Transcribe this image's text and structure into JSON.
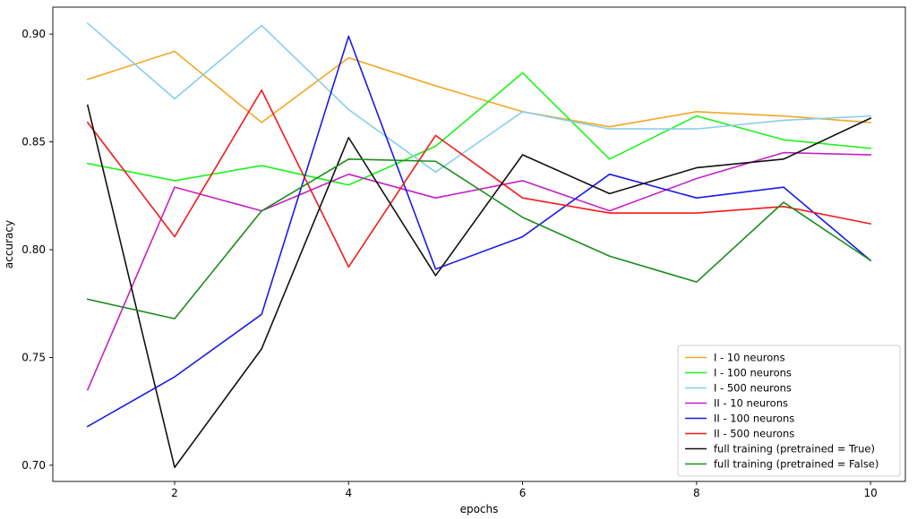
{
  "chart_data": {
    "type": "line",
    "title": "",
    "xlabel": "epochs",
    "ylabel": "accuracy",
    "x": [
      1,
      2,
      3,
      4,
      5,
      6,
      7,
      8,
      9,
      10
    ],
    "xlim": [
      0.6,
      10.4
    ],
    "ylim": [
      0.6925,
      0.9125
    ],
    "xticks": [
      2,
      4,
      6,
      8,
      10
    ],
    "yticks": [
      0.7,
      0.75,
      0.8,
      0.85,
      0.9
    ],
    "ytick_labels": [
      "0.70",
      "0.75",
      "0.80",
      "0.85",
      "0.90"
    ],
    "grid": false,
    "legend_position": "lower-right",
    "series": [
      {
        "name": "I - 10 neurons",
        "color": "#f5a623",
        "values": [
          0.879,
          0.892,
          0.859,
          0.889,
          0.876,
          0.864,
          0.857,
          0.864,
          0.862,
          0.859
        ]
      },
      {
        "name": "I - 100 neurons",
        "color": "#19f519",
        "values": [
          0.84,
          0.832,
          0.839,
          0.83,
          0.848,
          0.882,
          0.842,
          0.862,
          0.851,
          0.847
        ]
      },
      {
        "name": "I - 500 neurons",
        "color": "#87ceeb",
        "values": [
          0.905,
          0.87,
          0.904,
          0.865,
          0.836,
          0.864,
          0.856,
          0.856,
          0.86,
          0.862
        ]
      },
      {
        "name": "II - 10 neurons",
        "color": "#c71fc7",
        "values": [
          0.735,
          0.829,
          0.818,
          0.835,
          0.824,
          0.832,
          0.818,
          0.833,
          0.845,
          0.844
        ]
      },
      {
        "name": "II - 100 neurons",
        "color": "#1a1aeb",
        "values": [
          0.718,
          0.741,
          0.77,
          0.899,
          0.791,
          0.806,
          0.835,
          0.824,
          0.829,
          0.795
        ]
      },
      {
        "name": "II - 500 neurons",
        "color": "#f51919",
        "values": [
          0.859,
          0.806,
          0.874,
          0.792,
          0.853,
          0.824,
          0.817,
          0.817,
          0.82,
          0.812
        ]
      },
      {
        "name": "full training (pretrained = True)",
        "color": "#111111",
        "values": [
          0.867,
          0.699,
          0.754,
          0.852,
          0.788,
          0.844,
          0.826,
          0.838,
          0.842,
          0.861
        ]
      },
      {
        "name": "full training (pretrained = False)",
        "color": "#1a8c1a",
        "values": [
          0.777,
          0.768,
          0.818,
          0.842,
          0.841,
          0.815,
          0.797,
          0.785,
          0.822,
          0.795
        ]
      }
    ]
  }
}
